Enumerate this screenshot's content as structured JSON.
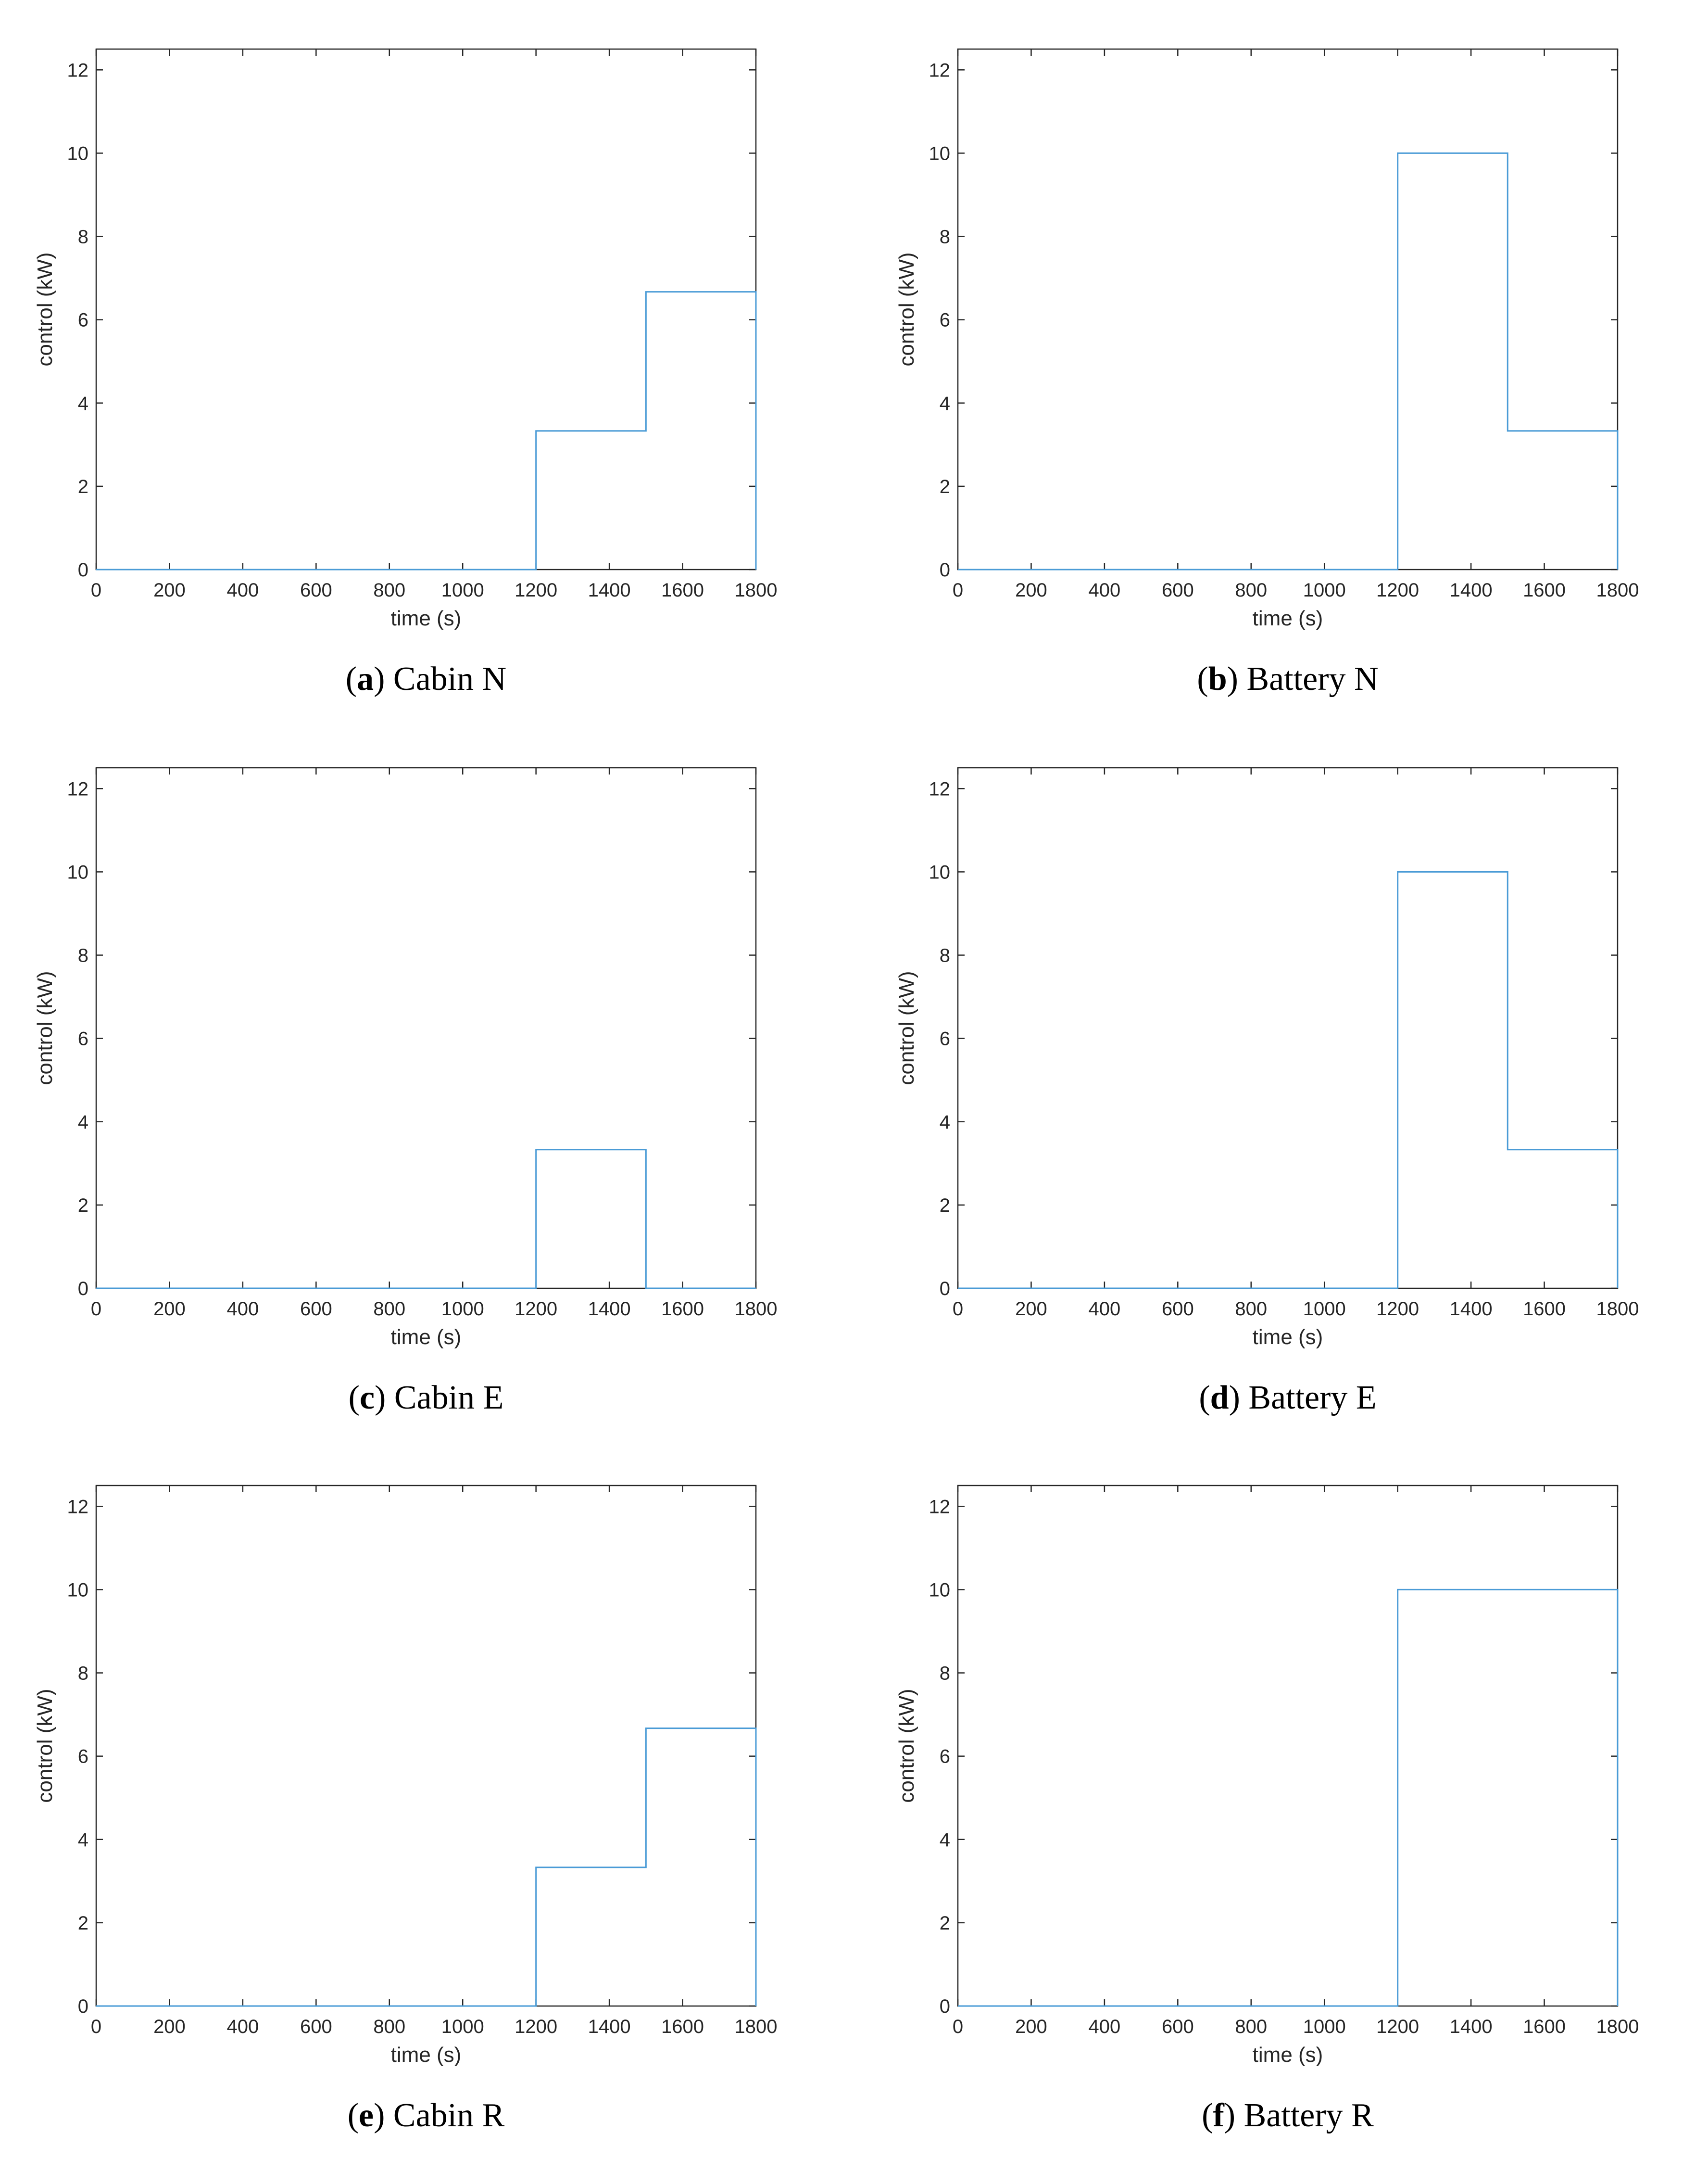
{
  "figure": {
    "line_color": "#4a9bd6",
    "axis_color": "#262626"
  },
  "chart_data": [
    {
      "type": "line",
      "panel_letter": "a",
      "caption": "Cabin N",
      "xlabel": "time (s)",
      "ylabel": "control (kW)",
      "xlim": [
        0,
        1800
      ],
      "ylim": [
        0,
        12.5
      ],
      "xticks": [
        0,
        200,
        400,
        600,
        800,
        1000,
        1200,
        1400,
        1600,
        1800
      ],
      "yticks": [
        0,
        2,
        4,
        6,
        8,
        10,
        12
      ],
      "grid": false,
      "x": [
        0,
        1200,
        1200,
        1500,
        1500,
        1800,
        1800
      ],
      "y": [
        0,
        0,
        3.33,
        3.33,
        6.67,
        6.67,
        0
      ]
    },
    {
      "type": "line",
      "panel_letter": "b",
      "caption": "Battery N",
      "xlabel": "time (s)",
      "ylabel": "control (kW)",
      "xlim": [
        0,
        1800
      ],
      "ylim": [
        0,
        12.5
      ],
      "xticks": [
        0,
        200,
        400,
        600,
        800,
        1000,
        1200,
        1400,
        1600,
        1800
      ],
      "yticks": [
        0,
        2,
        4,
        6,
        8,
        10,
        12
      ],
      "grid": false,
      "x": [
        0,
        1200,
        1200,
        1500,
        1500,
        1800,
        1800
      ],
      "y": [
        0,
        0,
        10,
        10,
        3.33,
        3.33,
        0
      ]
    },
    {
      "type": "line",
      "panel_letter": "c",
      "caption": "Cabin E",
      "xlabel": "time (s)",
      "ylabel": "control (kW)",
      "xlim": [
        0,
        1800
      ],
      "ylim": [
        0,
        12.5
      ],
      "xticks": [
        0,
        200,
        400,
        600,
        800,
        1000,
        1200,
        1400,
        1600,
        1800
      ],
      "yticks": [
        0,
        2,
        4,
        6,
        8,
        10,
        12
      ],
      "grid": false,
      "x": [
        0,
        1200,
        1200,
        1500,
        1500,
        1800
      ],
      "y": [
        0,
        0,
        3.33,
        3.33,
        0,
        0
      ]
    },
    {
      "type": "line",
      "panel_letter": "d",
      "caption": "Battery E",
      "xlabel": "time (s)",
      "ylabel": "control (kW)",
      "xlim": [
        0,
        1800
      ],
      "ylim": [
        0,
        12.5
      ],
      "xticks": [
        0,
        200,
        400,
        600,
        800,
        1000,
        1200,
        1400,
        1600,
        1800
      ],
      "yticks": [
        0,
        2,
        4,
        6,
        8,
        10,
        12
      ],
      "grid": false,
      "x": [
        0,
        1200,
        1200,
        1500,
        1500,
        1800,
        1800
      ],
      "y": [
        0,
        0,
        10,
        10,
        3.33,
        3.33,
        0
      ]
    },
    {
      "type": "line",
      "panel_letter": "e",
      "caption": "Cabin R",
      "xlabel": "time (s)",
      "ylabel": "control (kW)",
      "xlim": [
        0,
        1800
      ],
      "ylim": [
        0,
        12.5
      ],
      "xticks": [
        0,
        200,
        400,
        600,
        800,
        1000,
        1200,
        1400,
        1600,
        1800
      ],
      "yticks": [
        0,
        2,
        4,
        6,
        8,
        10,
        12
      ],
      "grid": false,
      "x": [
        0,
        1200,
        1200,
        1500,
        1500,
        1800,
        1800
      ],
      "y": [
        0,
        0,
        3.33,
        3.33,
        6.67,
        6.67,
        0
      ]
    },
    {
      "type": "line",
      "panel_letter": "f",
      "caption": "Battery R",
      "xlabel": "time (s)",
      "ylabel": "control (kW)",
      "xlim": [
        0,
        1800
      ],
      "ylim": [
        0,
        12.5
      ],
      "xticks": [
        0,
        200,
        400,
        600,
        800,
        1000,
        1200,
        1400,
        1600,
        1800
      ],
      "yticks": [
        0,
        2,
        4,
        6,
        8,
        10,
        12
      ],
      "grid": false,
      "x": [
        0,
        1200,
        1200,
        1800,
        1800
      ],
      "y": [
        0,
        0,
        10,
        10,
        0
      ]
    }
  ]
}
